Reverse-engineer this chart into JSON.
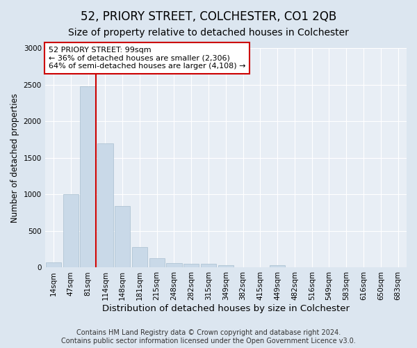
{
  "title": "52, PRIORY STREET, COLCHESTER, CO1 2QB",
  "subtitle": "Size of property relative to detached houses in Colchester",
  "xlabel": "Distribution of detached houses by size in Colchester",
  "ylabel": "Number of detached properties",
  "categories": [
    "14sqm",
    "47sqm",
    "81sqm",
    "114sqm",
    "148sqm",
    "181sqm",
    "215sqm",
    "248sqm",
    "282sqm",
    "315sqm",
    "349sqm",
    "382sqm",
    "415sqm",
    "449sqm",
    "482sqm",
    "516sqm",
    "549sqm",
    "583sqm",
    "616sqm",
    "650sqm",
    "683sqm"
  ],
  "values": [
    70,
    1000,
    2480,
    1700,
    840,
    280,
    130,
    60,
    50,
    50,
    30,
    5,
    0,
    30,
    0,
    0,
    0,
    0,
    0,
    0,
    0
  ],
  "bar_color": "#c9d9e8",
  "bar_edge_color": "#a8bfcf",
  "vline_color": "#cc0000",
  "vline_x_index": 2,
  "annotation_text": "52 PRIORY STREET: 99sqm\n← 36% of detached houses are smaller (2,306)\n64% of semi-detached houses are larger (4,108) →",
  "annotation_box_facecolor": "#ffffff",
  "annotation_box_edgecolor": "#cc0000",
  "ylim": [
    0,
    3000
  ],
  "yticks": [
    0,
    500,
    1000,
    1500,
    2000,
    2500,
    3000
  ],
  "bg_color": "#dce6f0",
  "plot_bg_color": "#e8eef5",
  "grid_color": "#ffffff",
  "footnote": "Contains HM Land Registry data © Crown copyright and database right 2024.\nContains public sector information licensed under the Open Government Licence v3.0.",
  "title_fontsize": 12,
  "subtitle_fontsize": 10,
  "xlabel_fontsize": 9.5,
  "ylabel_fontsize": 8.5,
  "tick_fontsize": 7.5,
  "annot_fontsize": 8,
  "footnote_fontsize": 7
}
